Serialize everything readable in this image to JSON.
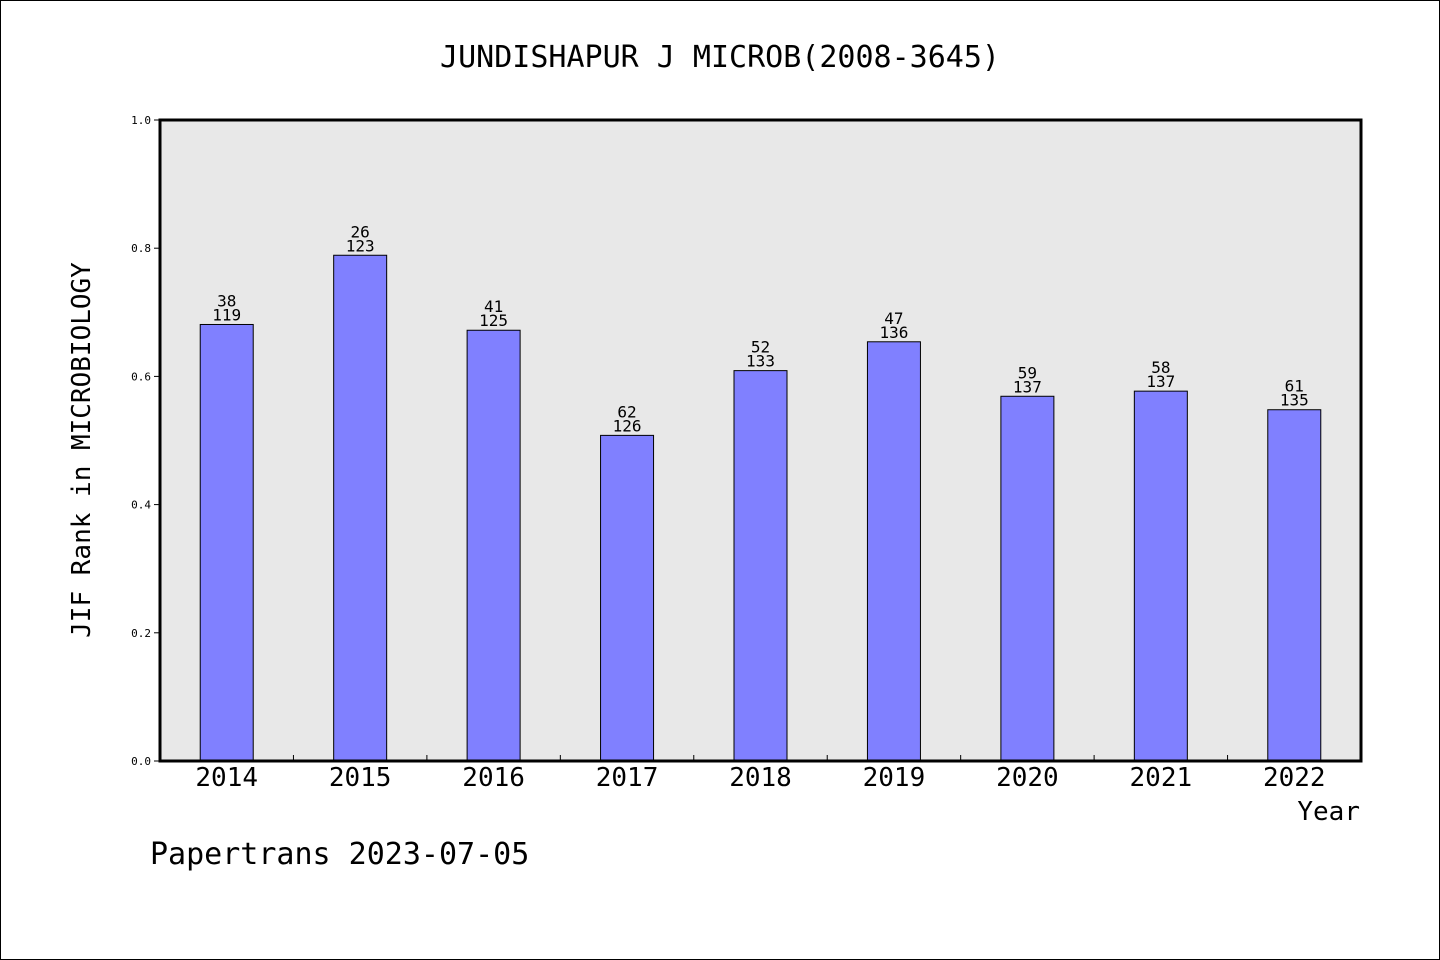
{
  "chart_data": {
    "type": "bar",
    "title": "JUNDISHAPUR J MICROB(2008-3645)",
    "ylabel": "JIF Rank in MICROBIOLOGY",
    "xlabel": "Year",
    "ylim": [
      0,
      1.0
    ],
    "yticks": [
      "0.0",
      "0.2",
      "0.4",
      "0.6",
      "0.8",
      "1.0"
    ],
    "categories": [
      "2014",
      "2015",
      "2016",
      "2017",
      "2018",
      "2019",
      "2020",
      "2021",
      "2022"
    ],
    "values": [
      0.681,
      0.789,
      0.672,
      0.508,
      0.609,
      0.654,
      0.569,
      0.577,
      0.548
    ],
    "rank_labels": [
      "38",
      "26",
      "41",
      "62",
      "52",
      "47",
      "59",
      "58",
      "61"
    ],
    "total_labels": [
      "119",
      "123",
      "125",
      "126",
      "133",
      "136",
      "137",
      "137",
      "135"
    ],
    "bar_color": "#8080ff",
    "plot_bg": "#e8e8e8",
    "grid": false
  },
  "footer": "Papertrans 2023-07-05"
}
